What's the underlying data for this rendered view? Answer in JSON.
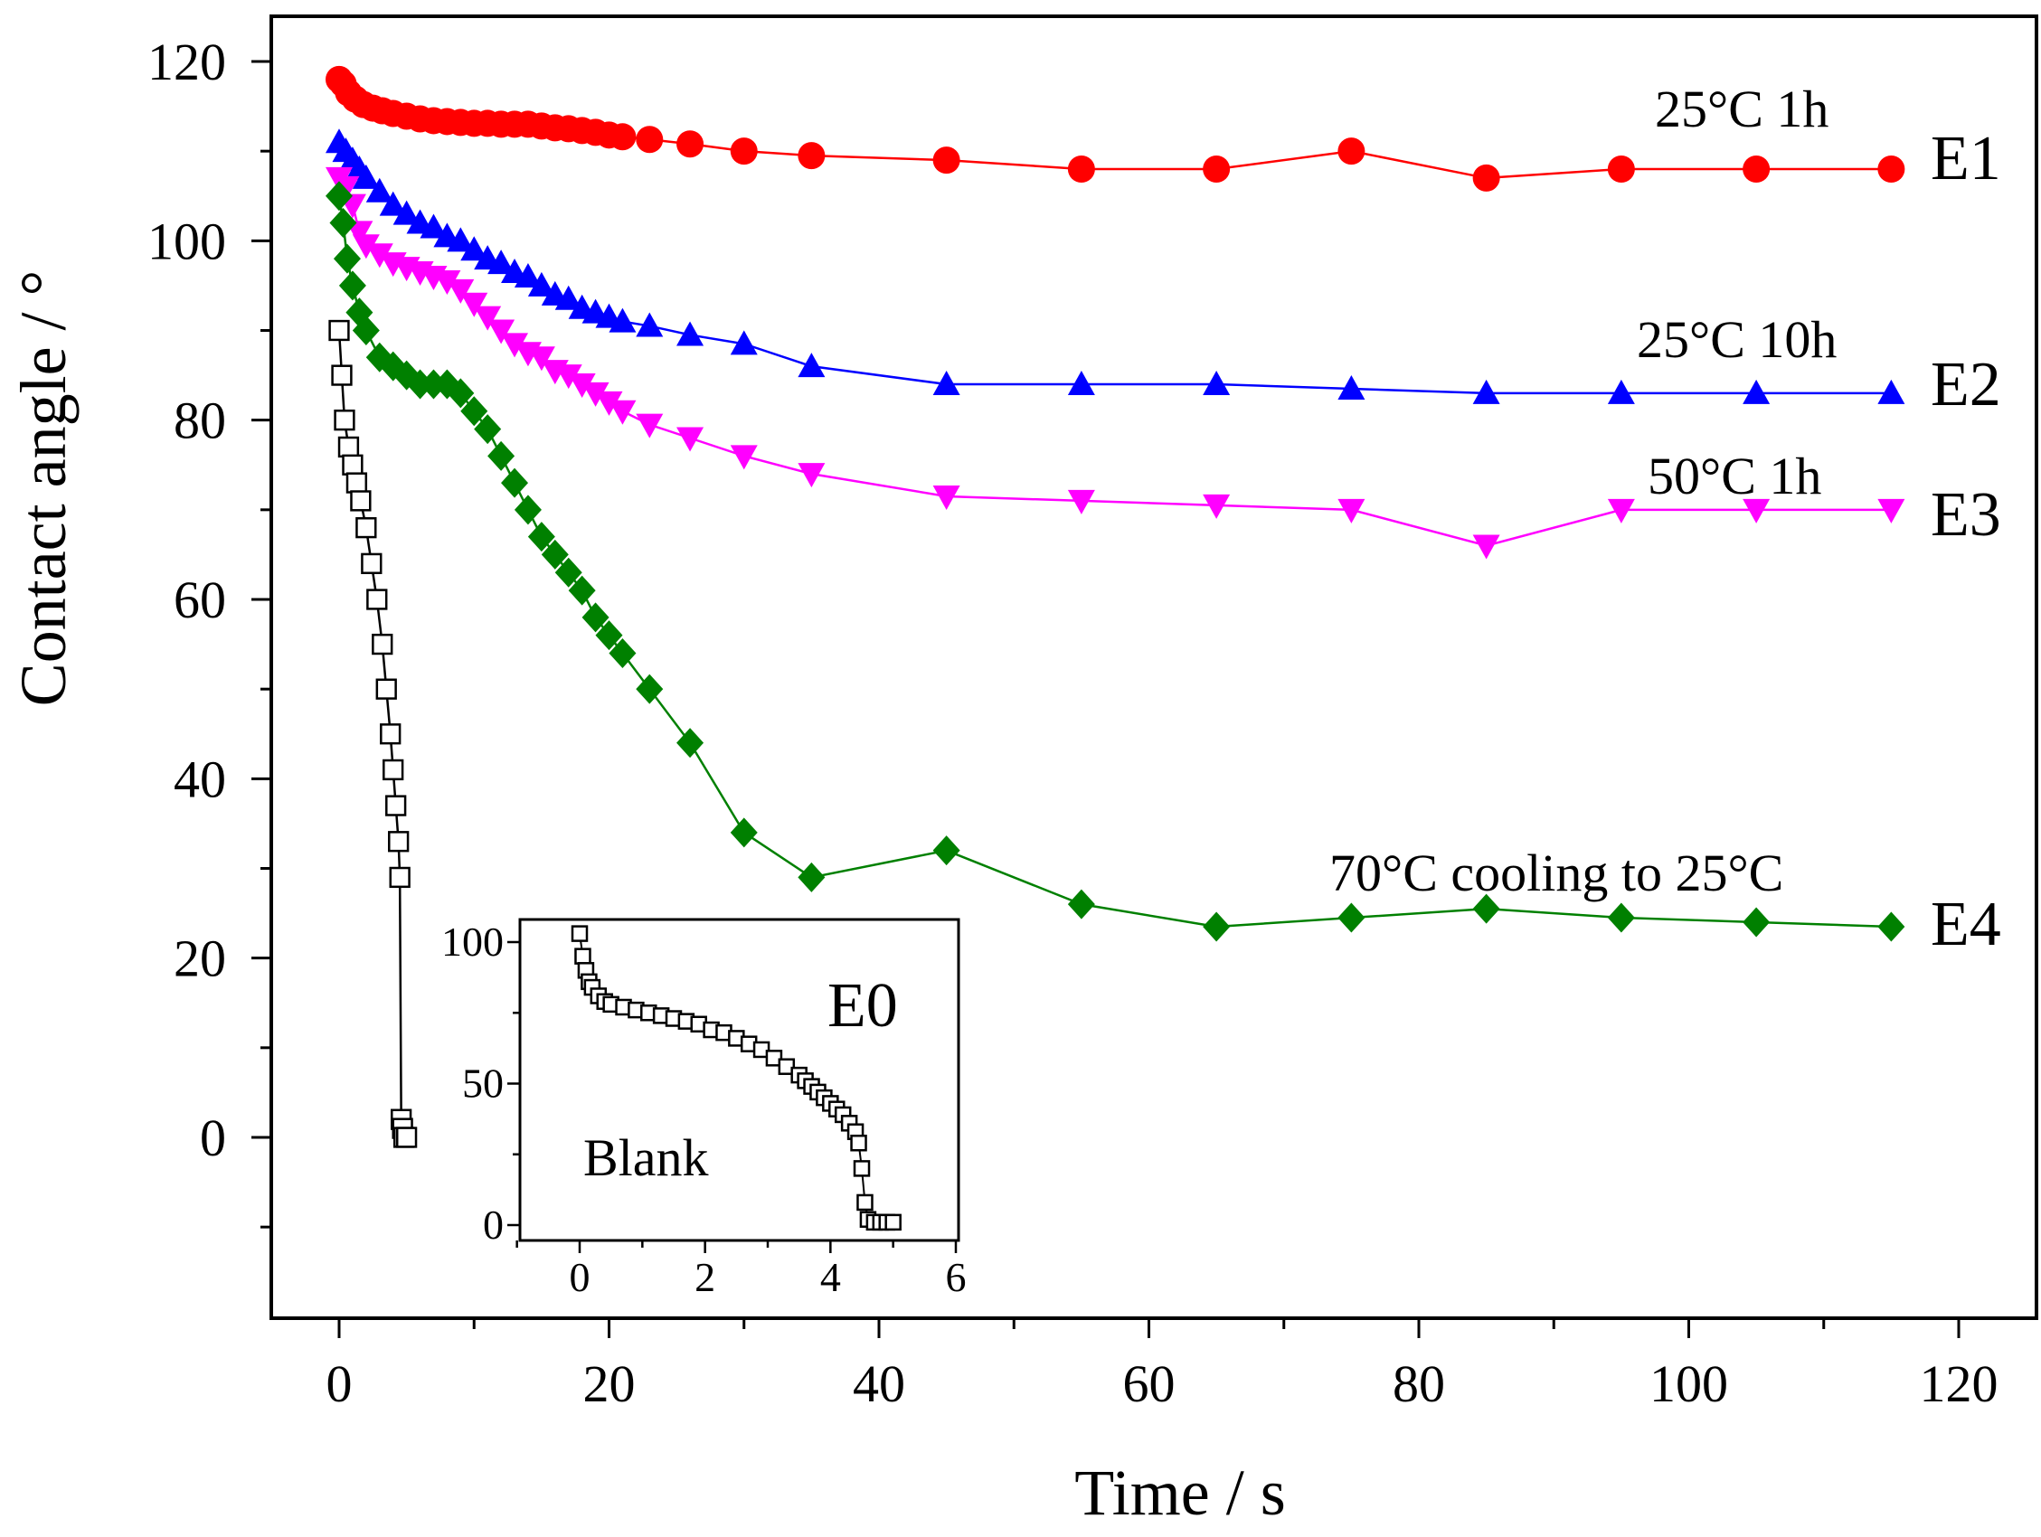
{
  "chart_data": [
    {
      "type": "line",
      "xlabel": "Time / s",
      "ylabel": "Contact angle / °",
      "xlim": [
        -4,
        120
      ],
      "ylim": [
        -20,
        122
      ],
      "xticks": [
        "0",
        "20",
        "40",
        "60",
        "80",
        "100",
        "120"
      ],
      "yticks": [
        "0",
        "20",
        "40",
        "60",
        "80",
        "100",
        "120"
      ],
      "series": [
        {
          "name": "E1",
          "label": "25°C 1h",
          "color": "#ff0000",
          "marker": "circle",
          "x": [
            0,
            0.3,
            0.7,
            1.2,
            1.8,
            2.5,
            3.2,
            4,
            5,
            6,
            7,
            8,
            9,
            10,
            11,
            12,
            13,
            14,
            15,
            16,
            17,
            18,
            19,
            20,
            21,
            23,
            26,
            30,
            35,
            45,
            55,
            65,
            75,
            85,
            95,
            105,
            115
          ],
          "y": [
            118,
            117.5,
            116.5,
            115.8,
            115.2,
            114.8,
            114.5,
            114.2,
            113.9,
            113.6,
            113.4,
            113.3,
            113.2,
            113.1,
            113.1,
            113.0,
            113.0,
            113.0,
            112.8,
            112.6,
            112.5,
            112.3,
            112.1,
            111.8,
            111.6,
            111.3,
            110.8,
            110.0,
            109.5,
            109.0,
            108.0,
            108.0,
            110.0,
            107.0,
            108.0,
            108.0,
            108.0
          ]
        },
        {
          "name": "E2",
          "label": "25°C 10h",
          "color": "#0000ff",
          "marker": "triangle-up",
          "x": [
            0,
            0.5,
            1,
            1.5,
            2,
            3,
            4,
            5,
            6,
            7,
            8,
            9,
            10,
            11,
            12,
            13,
            14,
            15,
            16,
            17,
            18,
            19,
            20,
            21,
            23,
            26,
            30,
            35,
            45,
            55,
            65,
            75,
            85,
            95,
            105,
            115
          ],
          "y": [
            111,
            110,
            109,
            108,
            107,
            105.5,
            104,
            103,
            102,
            101.5,
            100.5,
            100,
            99,
            98,
            97.5,
            96.5,
            96,
            95,
            94,
            93.5,
            92.5,
            92,
            91.5,
            91,
            90.5,
            89.5,
            88.5,
            86,
            84,
            84,
            84,
            83.5,
            83,
            83,
            83,
            83
          ]
        },
        {
          "name": "E3",
          "label": "50°C 1h",
          "color": "#ff00ff",
          "marker": "triangle-down",
          "x": [
            0,
            0.5,
            1,
            1.5,
            2,
            3,
            4,
            5,
            6,
            7,
            8,
            9,
            10,
            11,
            12,
            13,
            14,
            15,
            16,
            17,
            18,
            19,
            20,
            21,
            23,
            26,
            30,
            35,
            45,
            55,
            65,
            75,
            85,
            95,
            105,
            115
          ],
          "y": [
            107,
            106,
            104,
            101,
            99.5,
            98.5,
            97.5,
            97,
            96.5,
            96,
            95.5,
            94.5,
            93,
            91.5,
            90,
            88.5,
            87.5,
            87,
            85.5,
            85,
            84,
            83,
            82,
            81,
            79.5,
            78,
            76,
            74,
            71.5,
            71,
            70.5,
            70,
            66,
            70,
            70,
            70
          ]
        },
        {
          "name": "E4",
          "label": "70°C cooling to 25°C",
          "color": "#008000",
          "marker": "diamond",
          "x": [
            0,
            0.3,
            0.6,
            1,
            1.5,
            2,
            3,
            4,
            5,
            6,
            7,
            8,
            9,
            10,
            11,
            12,
            13,
            14,
            15,
            16,
            17,
            18,
            19,
            20,
            21,
            23,
            26,
            30,
            35,
            45,
            55,
            65,
            75,
            85,
            95,
            105,
            115
          ],
          "y": [
            105,
            102,
            98,
            95,
            92,
            90,
            87,
            86,
            85,
            84,
            84,
            84,
            83,
            81,
            79,
            76,
            73,
            70,
            67,
            65,
            63,
            61,
            58,
            56,
            54,
            50,
            44,
            34,
            29,
            32,
            26,
            23.5,
            24.5,
            25.5,
            24.5,
            24,
            23.5
          ]
        },
        {
          "name": "E0",
          "label": "Blank",
          "color": "#000000",
          "marker": "square-open",
          "x": [
            0,
            0.2,
            0.4,
            0.7,
            1,
            1.3,
            1.6,
            2,
            2.4,
            2.8,
            3.2,
            3.5,
            3.8,
            4.0,
            4.2,
            4.4,
            4.5,
            4.6,
            4.7,
            4.8,
            5
          ],
          "y": [
            90,
            85,
            80,
            77,
            75,
            73,
            71,
            68,
            64,
            60,
            55,
            50,
            45,
            41,
            37,
            33,
            29,
            2,
            1,
            0,
            0
          ]
        }
      ]
    },
    {
      "type": "scatter",
      "name": "inset",
      "title": "E0",
      "label": "Blank",
      "xlim": [
        -1,
        6
      ],
      "ylim": [
        -3,
        105
      ],
      "xticks": [
        "0",
        "2",
        "4",
        "6"
      ],
      "yticks": [
        "0",
        "50",
        "100"
      ],
      "x": [
        0,
        0.05,
        0.1,
        0.15,
        0.2,
        0.3,
        0.4,
        0.5,
        0.7,
        0.9,
        1.1,
        1.3,
        1.5,
        1.7,
        1.9,
        2.1,
        2.3,
        2.5,
        2.7,
        2.9,
        3.1,
        3.3,
        3.5,
        3.6,
        3.7,
        3.8,
        3.9,
        4.0,
        4.1,
        4.2,
        4.3,
        4.4,
        4.45,
        4.5,
        4.55,
        4.6,
        4.7,
        4.8,
        4.9,
        5.0
      ],
      "y": [
        103,
        95,
        90,
        86,
        84,
        81,
        79,
        78,
        77,
        76,
        75,
        74,
        73,
        72,
        71,
        69,
        68,
        66,
        64,
        62,
        59,
        56,
        53,
        51,
        49,
        47,
        45,
        43,
        41,
        39,
        36,
        33,
        29,
        20,
        8,
        2,
        1,
        1,
        1,
        1
      ]
    }
  ]
}
